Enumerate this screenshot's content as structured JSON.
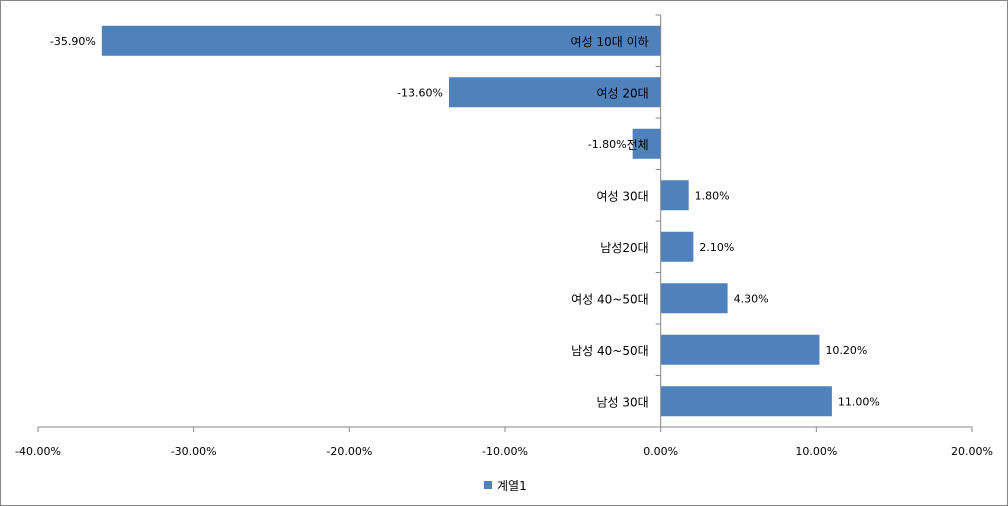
{
  "chart_data": {
    "type": "bar",
    "orientation": "horizontal",
    "categories": [
      "여성 10대 이하",
      "여성 20대",
      "전체",
      "여성 30대",
      "남성20대",
      "여성 40~50대",
      "남성 40~50대",
      "남성 30대"
    ],
    "series": [
      {
        "name": "계열1",
        "values": [
          -35.9,
          -13.6,
          -1.8,
          1.8,
          2.1,
          4.3,
          10.2,
          11.0
        ],
        "labels": [
          "-35.90%",
          "-13.60%",
          "-1.80%",
          "1.80%",
          "2.10%",
          "4.30%",
          "10.20%",
          "11.00%"
        ],
        "color": "#4f81bd"
      }
    ],
    "xlim": [
      -40,
      20
    ],
    "xticks": [
      -40,
      -30,
      -20,
      -10,
      0,
      10,
      20
    ],
    "xtick_labels": [
      "-40.00%",
      "-30.00%",
      "-20.00%",
      "-10.00%",
      "0.00%",
      "10.00%",
      "20.00%"
    ],
    "grid": false,
    "legend_position": "bottom",
    "axis_color": "#878787"
  }
}
